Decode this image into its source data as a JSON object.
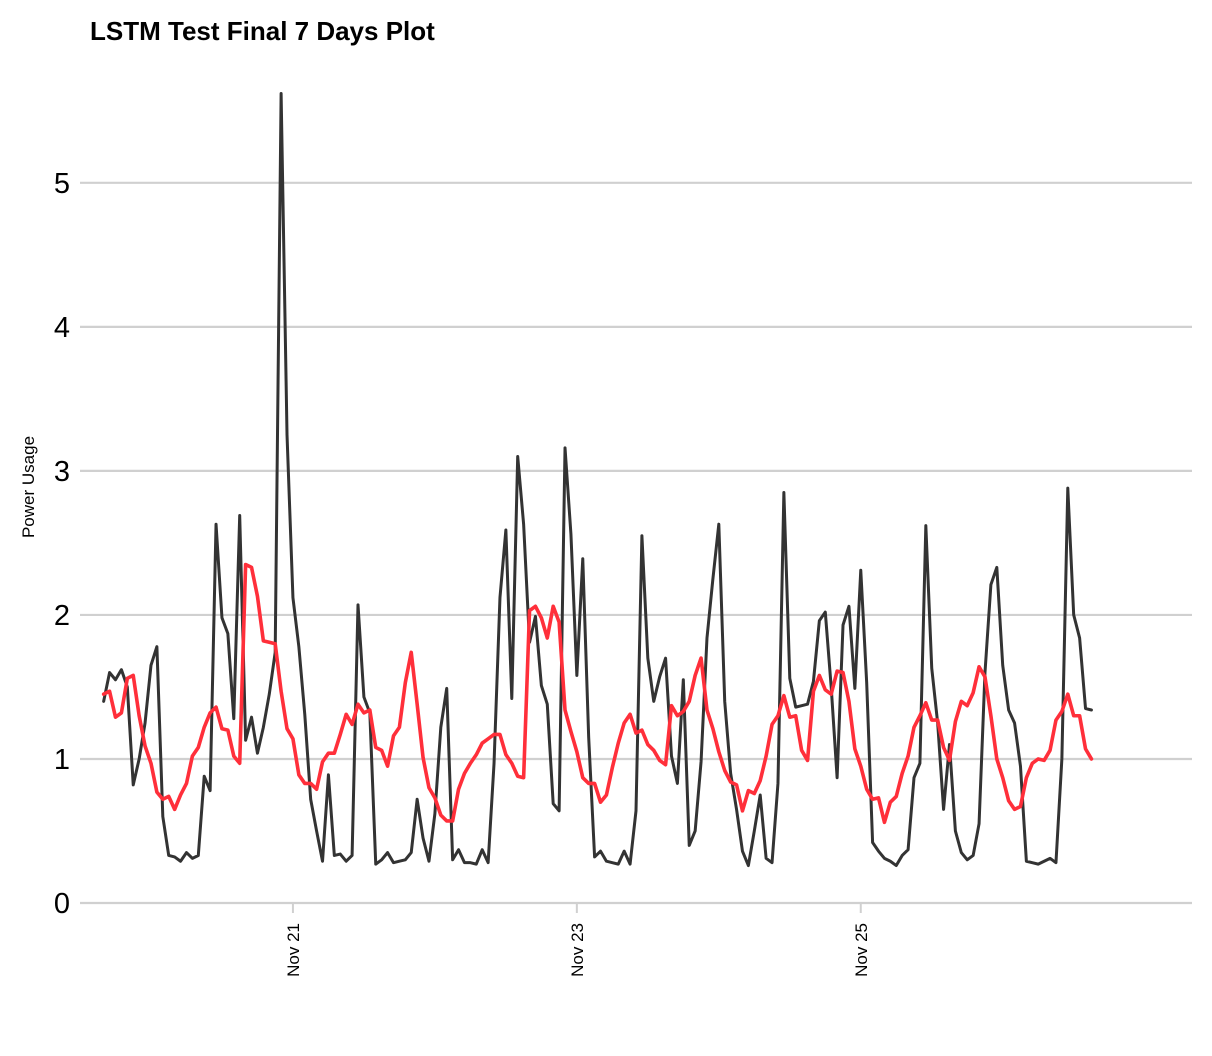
{
  "chart_data": {
    "type": "line",
    "title": "LSTM Test Final 7 Days Plot",
    "xlabel": "",
    "ylabel": "Power Usage",
    "x_start": "2006-11-19T16:00",
    "x_step_hours": 1,
    "xlim": [
      "2006-11-19T12:00",
      "2006-11-27T08:00"
    ],
    "ylim": [
      0,
      5.7
    ],
    "yticks": [
      0,
      1,
      2,
      3,
      4,
      5
    ],
    "xticks": [
      {
        "label": "Nov 21",
        "date": "2006-11-21T00:00"
      },
      {
        "label": "Nov 23",
        "date": "2006-11-23T00:00"
      },
      {
        "label": "Nov 25",
        "date": "2006-11-25T00:00"
      }
    ],
    "grid": "horizontal",
    "legend": "none",
    "series": [
      {
        "color": "#333333",
        "values": [
          1.4,
          1.6,
          1.55,
          1.62,
          1.5,
          0.82,
          1.0,
          1.25,
          1.65,
          1.78,
          0.6,
          0.33,
          0.32,
          0.29,
          0.35,
          0.31,
          0.33,
          0.88,
          0.78,
          2.63,
          1.98,
          1.87,
          1.28,
          2.69,
          1.13,
          1.29,
          1.04,
          1.22,
          1.45,
          1.74,
          5.62,
          3.25,
          2.12,
          1.78,
          1.31,
          0.72,
          0.5,
          0.29,
          0.89,
          0.33,
          0.34,
          0.29,
          0.33,
          2.07,
          1.43,
          1.32,
          0.27,
          0.3,
          0.35,
          0.28,
          0.29,
          0.3,
          0.35,
          0.72,
          0.45,
          0.29,
          0.62,
          1.22,
          1.49,
          0.3,
          0.37,
          0.28,
          0.28,
          0.27,
          0.37,
          0.28,
          0.97,
          2.12,
          2.59,
          1.42,
          3.1,
          2.63,
          1.81,
          1.99,
          1.51,
          1.38,
          0.69,
          0.64,
          3.16,
          2.56,
          1.58,
          2.39,
          1.15,
          0.32,
          0.36,
          0.29,
          0.28,
          0.27,
          0.36,
          0.27,
          0.64,
          2.55,
          1.7,
          1.4,
          1.57,
          1.7,
          1.02,
          0.83,
          1.55,
          0.4,
          0.5,
          0.98,
          1.84,
          2.25,
          2.63,
          1.4,
          0.9,
          0.65,
          0.36,
          0.26,
          0.5,
          0.75,
          0.31,
          0.28,
          0.83,
          2.85,
          1.56,
          1.36,
          1.37,
          1.38,
          1.54,
          1.96,
          2.02,
          1.5,
          0.87,
          1.93,
          2.06,
          1.49,
          2.31,
          1.53,
          0.42,
          0.36,
          0.31,
          0.29,
          0.26,
          0.33,
          0.37,
          0.87,
          0.97,
          2.62,
          1.63,
          1.25,
          0.65,
          1.1,
          0.5,
          0.35,
          0.3,
          0.33,
          0.55,
          1.6,
          2.21,
          2.33,
          1.65,
          1.34,
          1.25,
          0.95,
          0.29,
          0.28,
          0.27,
          0.29,
          0.31,
          0.28,
          1.0,
          2.88,
          2.0,
          1.84,
          1.35,
          1.34
        ]
      },
      {
        "color": "#ff2f3a",
        "values": [
          1.45,
          1.47,
          1.29,
          1.32,
          1.56,
          1.58,
          1.3,
          1.09,
          0.97,
          0.77,
          0.72,
          0.74,
          0.65,
          0.75,
          0.83,
          1.02,
          1.08,
          1.22,
          1.32,
          1.36,
          1.21,
          1.2,
          1.02,
          0.97,
          2.35,
          2.33,
          2.13,
          1.82,
          1.81,
          1.8,
          1.47,
          1.21,
          1.14,
          0.89,
          0.83,
          0.83,
          0.79,
          0.98,
          1.04,
          1.04,
          1.17,
          1.31,
          1.24,
          1.38,
          1.32,
          1.34,
          1.08,
          1.06,
          0.95,
          1.16,
          1.22,
          1.53,
          1.74,
          1.38,
          1.01,
          0.8,
          0.73,
          0.61,
          0.57,
          0.57,
          0.79,
          0.9,
          0.97,
          1.03,
          1.11,
          1.14,
          1.17,
          1.17,
          1.03,
          0.97,
          0.88,
          0.87,
          2.03,
          2.06,
          1.98,
          1.84,
          2.06,
          1.95,
          1.34,
          1.19,
          1.05,
          0.87,
          0.83,
          0.83,
          0.7,
          0.75,
          0.94,
          1.11,
          1.25,
          1.31,
          1.18,
          1.2,
          1.1,
          1.06,
          0.99,
          0.96,
          1.37,
          1.3,
          1.33,
          1.4,
          1.58,
          1.7,
          1.34,
          1.21,
          1.05,
          0.92,
          0.84,
          0.82,
          0.64,
          0.78,
          0.76,
          0.85,
          1.02,
          1.24,
          1.3,
          1.44,
          1.29,
          1.3,
          1.06,
          0.99,
          1.47,
          1.58,
          1.48,
          1.45,
          1.61,
          1.6,
          1.4,
          1.07,
          0.95,
          0.79,
          0.72,
          0.73,
          0.56,
          0.7,
          0.74,
          0.9,
          1.02,
          1.22,
          1.3,
          1.39,
          1.27,
          1.27,
          1.08,
          0.99,
          1.26,
          1.4,
          1.37,
          1.46,
          1.64,
          1.57,
          1.3,
          1.0,
          0.87,
          0.71,
          0.65,
          0.67,
          0.87,
          0.97,
          1.0,
          0.99,
          1.06,
          1.27,
          1.33,
          1.45,
          1.3,
          1.3,
          1.07,
          1.0
        ]
      }
    ]
  }
}
